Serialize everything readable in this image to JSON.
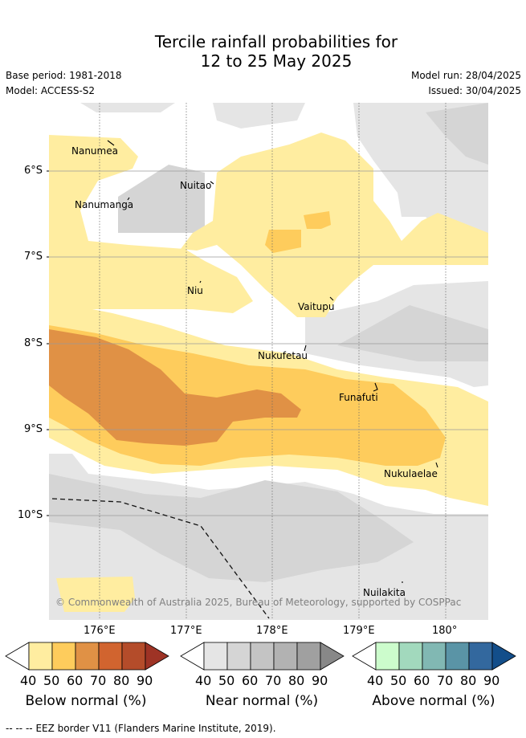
{
  "title": {
    "line1": "Tercile rainfall probabilities for",
    "line2": "12 to 25 May 2025"
  },
  "meta": {
    "base_period": "Base period: 1981-2018",
    "model": "Model: ACCESS-S2",
    "model_run": "Model run: 28/04/2025",
    "issued": "Issued: 30/04/2025"
  },
  "map": {
    "lat_labels": [
      "6°S",
      "7°S",
      "8°S",
      "9°S",
      "10°S"
    ],
    "lon_labels": [
      "176°E",
      "177°E",
      "178°E",
      "179°E",
      "180°"
    ],
    "places": [
      "Nanumea",
      "Nuitao",
      "Nanumanga",
      "Niu",
      "Vaitupu",
      "Nukufetau",
      "Funafuti",
      "Nukulaelae",
      "Nuilakita"
    ],
    "copyright": "© Commonwealth of Australia 2025, Bureau of Meteorology, supported by COSPPac",
    "eez_legend_label": "EEZ border V11 (Flanders Marine Institute, 2019)."
  },
  "colorbars": [
    {
      "label": "Below normal (%)",
      "ticks": [
        "40",
        "50",
        "60",
        "70",
        "80",
        "90"
      ],
      "colors": [
        "#ffeda0",
        "#fecc5c",
        "#e09145",
        "#d1642f",
        "#b44c2a",
        "#9e3325"
      ]
    },
    {
      "label": "Near normal (%)",
      "ticks": [
        "40",
        "50",
        "60",
        "70",
        "80",
        "90"
      ],
      "colors": [
        "#e5e5e5",
        "#d5d5d5",
        "#c4c4c4",
        "#b2b2b2",
        "#a0a0a0",
        "#888888"
      ]
    },
    {
      "label": "Above normal (%)",
      "ticks": [
        "40",
        "50",
        "60",
        "70",
        "80",
        "90"
      ],
      "colors": [
        "#ccfccc",
        "#a2d9bd",
        "#81b8b3",
        "#5a94a6",
        "#33689e",
        "#134e8a"
      ]
    }
  ]
}
